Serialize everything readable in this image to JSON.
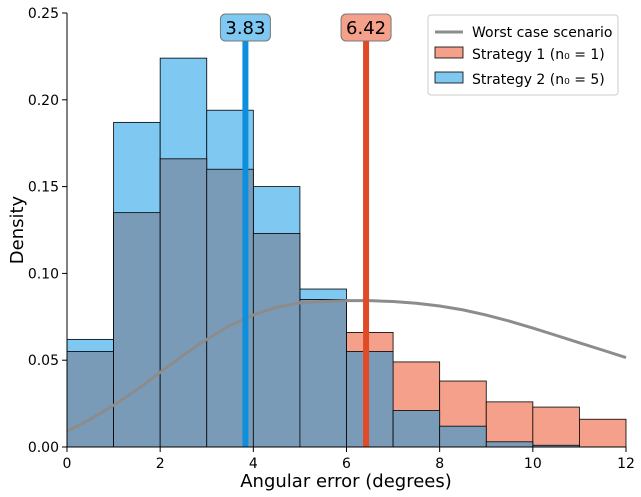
{
  "chart_data": {
    "type": "bar",
    "xlabel": "Angular error (degrees)",
    "ylabel": "Density",
    "xlim": [
      0,
      12
    ],
    "ylim": [
      0,
      0.25
    ],
    "xticks": [
      0,
      2,
      4,
      6,
      8,
      10,
      12
    ],
    "yticks": [
      0.0,
      0.05,
      0.1,
      0.15,
      0.2,
      0.25
    ],
    "xtick_labels": [
      "0",
      "2",
      "4",
      "6",
      "8",
      "10",
      "12"
    ],
    "ytick_labels": [
      "0.00",
      "0.05",
      "0.10",
      "0.15",
      "0.20",
      "0.25"
    ],
    "bin_edges": [
      0,
      1,
      2,
      3,
      4,
      5,
      6,
      7,
      8,
      9,
      10,
      11,
      12
    ],
    "legend_position": "top-right",
    "grid": false,
    "series": [
      {
        "key": "s1",
        "name": "Strategy 1 ",
        "name_math": "(n₀ = 1)",
        "color": "#f4a08a",
        "values": [
          0.055,
          0.135,
          0.166,
          0.16,
          0.123,
          0.085,
          0.066,
          0.049,
          0.038,
          0.026,
          0.023,
          0.016
        ]
      },
      {
        "key": "s2",
        "name": "Strategy 2 ",
        "name_math": "(n₀ = 5)",
        "color": "#7ec8f2",
        "values": [
          0.062,
          0.187,
          0.224,
          0.194,
          0.15,
          0.091,
          0.055,
          0.021,
          0.012,
          0.003,
          0.001,
          0.0
        ]
      }
    ],
    "overlap_color": "#7a9bb8",
    "worst_case": {
      "name": "Worst case scenario",
      "color": "#8c8c8c",
      "x": [
        0,
        0.5,
        1,
        1.5,
        2,
        2.5,
        3,
        3.5,
        4,
        4.5,
        5,
        5.5,
        6,
        6.5,
        7,
        7.5,
        8,
        8.5,
        9,
        9.5,
        10,
        10.5,
        11,
        11.5,
        12
      ],
      "y": [
        0.009,
        0.016,
        0.024,
        0.033,
        0.043,
        0.053,
        0.062,
        0.07,
        0.076,
        0.0805,
        0.083,
        0.0838,
        0.0843,
        0.0843,
        0.0838,
        0.0828,
        0.0812,
        0.079,
        0.076,
        0.0725,
        0.0685,
        0.0643,
        0.06,
        0.0558,
        0.0515
      ]
    },
    "markers": [
      {
        "x": 3.83,
        "label": "3.83",
        "line_color": "#0d8fde",
        "box_color": "#7ec8f2"
      },
      {
        "x": 6.42,
        "label": "6.42",
        "line_color": "#e04a26",
        "box_color": "#f4a08a"
      }
    ]
  }
}
